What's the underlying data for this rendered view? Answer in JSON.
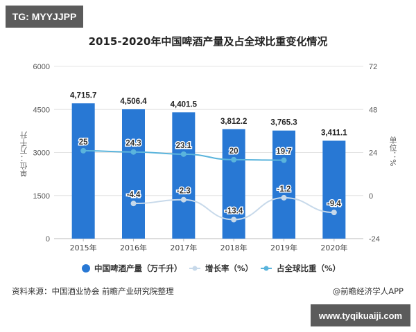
{
  "watermark_tag_top": "TG: MYYJJPP",
  "watermark_tag_bottom": "www.tyqikuaiji.com",
  "source_text": "资料来源：中国酒业协会 前瞻产业研究院整理",
  "credit_text": "@前瞻经济学人APP",
  "colors": {
    "bar": "#2878d4",
    "growth_line": "#c7d9ea",
    "share_line": "#5ab4dc",
    "grid": "#e4e4e4",
    "tag_bg": "#5b5b5b"
  },
  "chart_data": {
    "type": "bar",
    "title": "2015-2020年中国啤酒产量及占全球比重变化情况",
    "xlabel": "",
    "ylabel": "单位：万千升",
    "y2label": "单位：%",
    "categories": [
      "2015年",
      "2016年",
      "2017年",
      "2018年",
      "2019年",
      "2020年"
    ],
    "ylim": [
      0,
      6000
    ],
    "yticks": [
      0,
      1500,
      3000,
      4500,
      6000
    ],
    "y2lim": [
      -24,
      72
    ],
    "y2ticks": [
      -24,
      0,
      24,
      48,
      72
    ],
    "grid": true,
    "legend_position": "bottom",
    "series": [
      {
        "name": "中国啤酒产量（万千升）",
        "type": "bar",
        "axis": "left",
        "values": [
          4715.7,
          4506.4,
          4401.5,
          3812.2,
          3765.3,
          3411.1
        ],
        "labels": [
          "4,715.7",
          "4,506.4",
          "4,401.5",
          "3,812.2",
          "3,765.3",
          "3,411.1"
        ]
      },
      {
        "name": "增长率（%）",
        "type": "line",
        "axis": "right",
        "values": [
          null,
          -4.4,
          -2.3,
          -13.4,
          -1.2,
          -9.4
        ],
        "labels": [
          "",
          "-4.4",
          "-2.3",
          "-13.4",
          "-1.2",
          "-9.4"
        ]
      },
      {
        "name": "占全球比重（%）",
        "type": "line",
        "axis": "right",
        "values": [
          25,
          24.3,
          23.1,
          20,
          19.7,
          null
        ],
        "labels": [
          "25",
          "24.3",
          "23.1",
          "20",
          "19.7",
          ""
        ]
      }
    ]
  }
}
